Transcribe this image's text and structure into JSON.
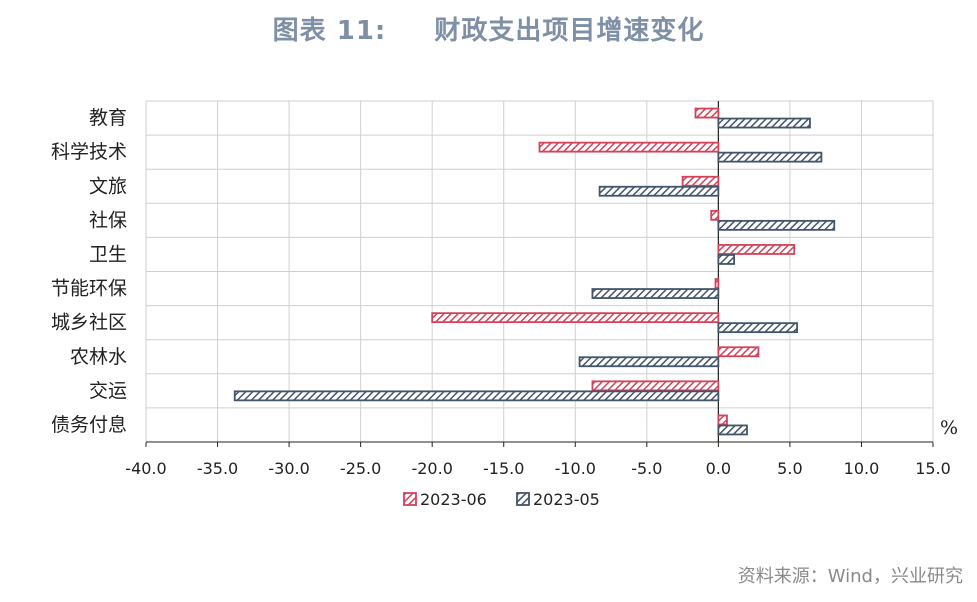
{
  "title": {
    "label": "图表 11:",
    "text": "财政支出项目增速变化"
  },
  "source": "资料来源：Wind，兴业研究",
  "colors": {
    "series_2023_06": "#d2435a",
    "series_2023_05": "#44546a",
    "grid": "#d0d0d0",
    "axis": "#222222"
  },
  "chart_data": {
    "type": "bar",
    "orientation": "horizontal",
    "categories": [
      "教育",
      "科学技术",
      "文旅",
      "社保",
      "卫生",
      "节能环保",
      "城乡社区",
      "农林水",
      "交运",
      "债务付息"
    ],
    "series": [
      {
        "name": "2023-06",
        "values": [
          -1.6,
          -12.5,
          -2.5,
          -0.5,
          5.3,
          -0.2,
          -20.0,
          2.8,
          -8.8,
          0.6
        ]
      },
      {
        "name": "2023-05",
        "values": [
          6.4,
          7.2,
          -8.3,
          8.1,
          1.1,
          -8.8,
          5.5,
          -9.7,
          -33.8,
          2.0
        ]
      }
    ],
    "xlim": [
      -40,
      15
    ],
    "xticks": [
      "-40.0",
      "-35.0",
      "-30.0",
      "-25.0",
      "-20.0",
      "-15.0",
      "-10.0",
      "-5.0",
      "0.0",
      "5.0",
      "10.0",
      "15.0"
    ],
    "unit_label": "%",
    "legend_position": "bottom",
    "grid": true,
    "pattern": "diagonal-hatch"
  }
}
